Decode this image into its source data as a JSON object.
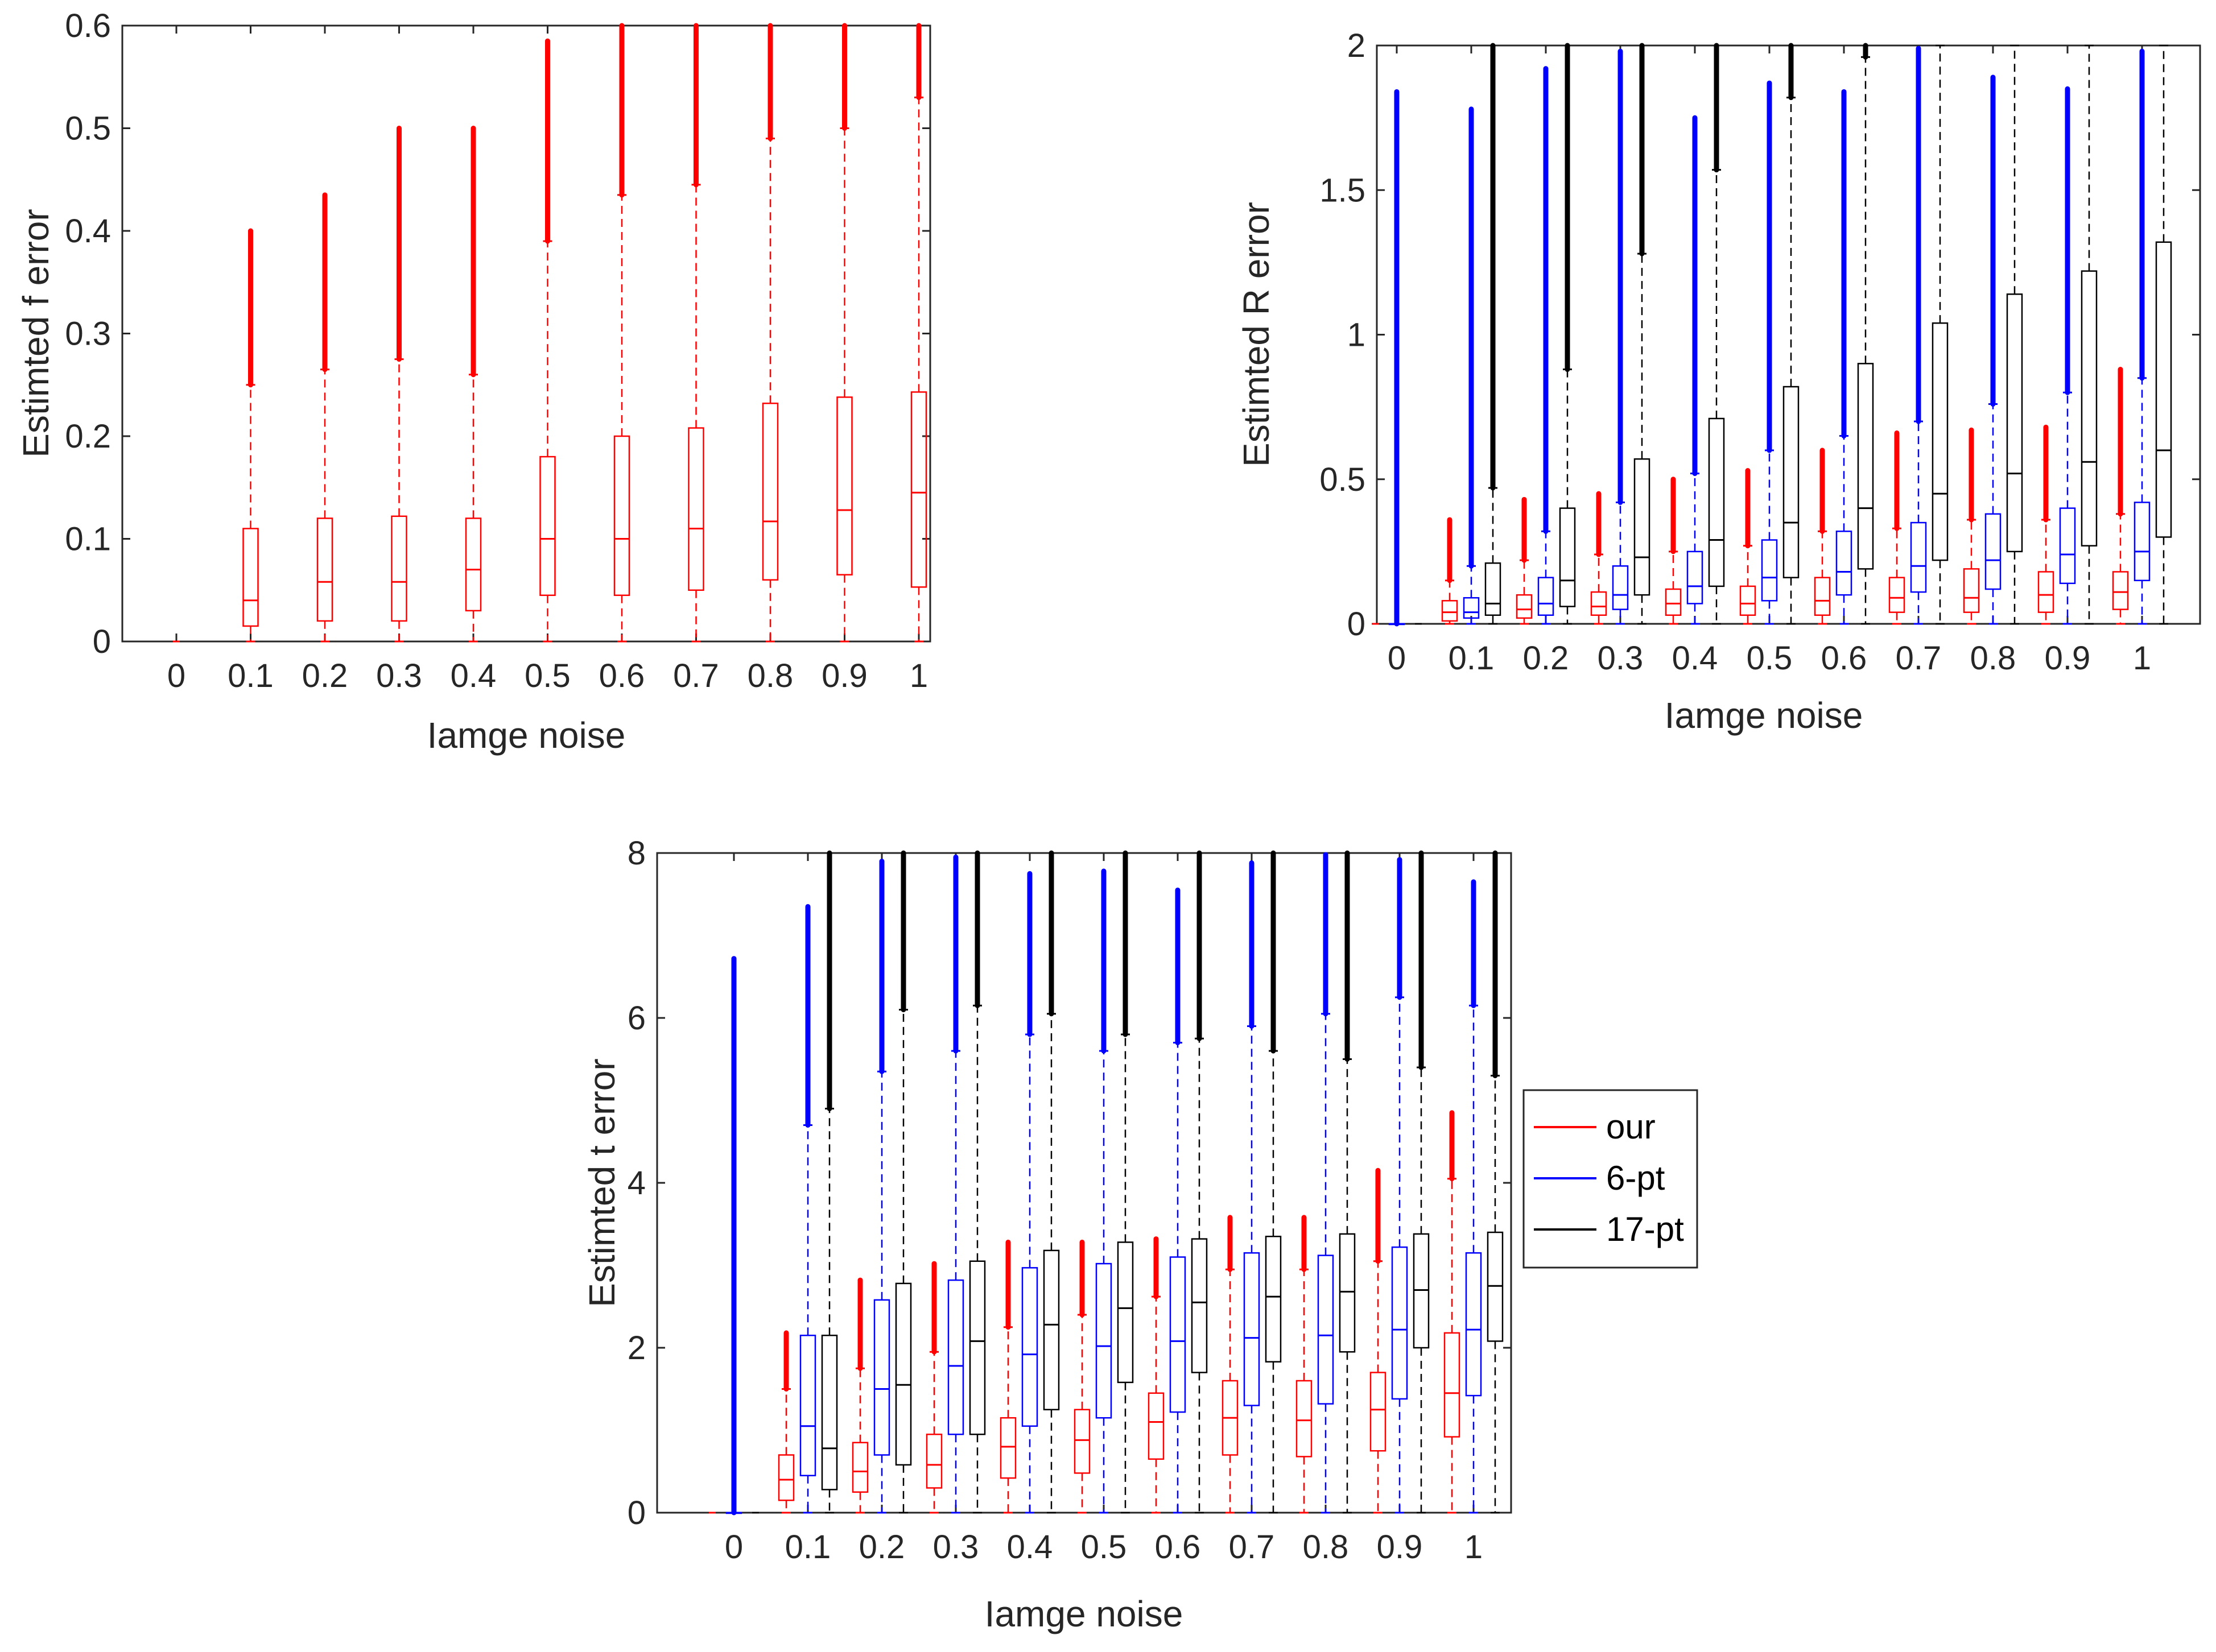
{
  "colors": {
    "our": "#ff0000",
    "6-pt": "#0000ff",
    "17-pt": "#000000",
    "axis": "#262626"
  },
  "legend": {
    "placement": "right of bottom chart",
    "items": [
      {
        "key": "our",
        "label": "our"
      },
      {
        "key": "6-pt",
        "label": "6-pt"
      },
      {
        "key": "17-pt",
        "label": "17-pt"
      }
    ]
  },
  "chart_data": [
    {
      "id": "f",
      "type": "box",
      "xlabel": "Iamge noise",
      "ylabel": "Estimted f error",
      "ylim": [
        0,
        0.6
      ],
      "yticks": [
        "0",
        "0.1",
        "0.2",
        "0.3",
        "0.4",
        "0.5",
        "0.6"
      ],
      "categories": [
        "0",
        "0.1",
        "0.2",
        "0.3",
        "0.4",
        "0.5",
        "0.6",
        "0.7",
        "0.8",
        "0.9",
        "1"
      ],
      "series": [
        {
          "key": "our",
          "boxes": [
            {
              "q1": 0,
              "med": 0,
              "q3": 0,
              "wlo": 0,
              "whi": 0,
              "omin": 0,
              "omax": 0
            },
            {
              "q1": 0.015,
              "med": 0.04,
              "q3": 0.11,
              "wlo": 0,
              "whi": 0.25,
              "omin": 0.25,
              "omax": 0.4
            },
            {
              "q1": 0.02,
              "med": 0.058,
              "q3": 0.12,
              "wlo": 0,
              "whi": 0.265,
              "omin": 0.265,
              "omax": 0.435
            },
            {
              "q1": 0.02,
              "med": 0.058,
              "q3": 0.122,
              "wlo": 0,
              "whi": 0.275,
              "omin": 0.275,
              "omax": 0.5
            },
            {
              "q1": 0.03,
              "med": 0.07,
              "q3": 0.12,
              "wlo": 0,
              "whi": 0.26,
              "omin": 0.26,
              "omax": 0.5
            },
            {
              "q1": 0.045,
              "med": 0.1,
              "q3": 0.18,
              "wlo": 0,
              "whi": 0.39,
              "omin": 0.39,
              "omax": 0.585
            },
            {
              "q1": 0.045,
              "med": 0.1,
              "q3": 0.2,
              "wlo": 0,
              "whi": 0.435,
              "omin": 0.435,
              "omax": 0.6
            },
            {
              "q1": 0.05,
              "med": 0.11,
              "q3": 0.208,
              "wlo": 0,
              "whi": 0.445,
              "omin": 0.445,
              "omax": 0.6
            },
            {
              "q1": 0.06,
              "med": 0.117,
              "q3": 0.232,
              "wlo": 0,
              "whi": 0.49,
              "omin": 0.49,
              "omax": 0.6
            },
            {
              "q1": 0.065,
              "med": 0.128,
              "q3": 0.238,
              "wlo": 0,
              "whi": 0.5,
              "omin": 0.5,
              "omax": 0.6
            },
            {
              "q1": 0.053,
              "med": 0.145,
              "q3": 0.243,
              "wlo": 0,
              "whi": 0.53,
              "omin": 0.53,
              "omax": 0.6
            }
          ]
        }
      ]
    },
    {
      "id": "R",
      "type": "box",
      "xlabel": "Iamge noise",
      "ylabel": "Estimted R error",
      "ylim": [
        0,
        2
      ],
      "yticks": [
        "0",
        "0.5",
        "1",
        "1.5",
        "2"
      ],
      "categories": [
        "0",
        "0.1",
        "0.2",
        "0.3",
        "0.4",
        "0.5",
        "0.6",
        "0.7",
        "0.8",
        "0.9",
        "1"
      ],
      "series": [
        {
          "key": "our",
          "boxes": [
            {
              "q1": 0,
              "med": 0,
              "q3": 0,
              "wlo": 0,
              "whi": 0,
              "omin": 0,
              "omax": 0
            },
            {
              "q1": 0.01,
              "med": 0.04,
              "q3": 0.08,
              "wlo": 0,
              "whi": 0.15,
              "omin": 0.15,
              "omax": 0.36
            },
            {
              "q1": 0.02,
              "med": 0.05,
              "q3": 0.1,
              "wlo": 0,
              "whi": 0.22,
              "omin": 0.22,
              "omax": 0.43
            },
            {
              "q1": 0.03,
              "med": 0.06,
              "q3": 0.11,
              "wlo": 0,
              "whi": 0.24,
              "omin": 0.24,
              "omax": 0.45
            },
            {
              "q1": 0.03,
              "med": 0.07,
              "q3": 0.12,
              "wlo": 0,
              "whi": 0.25,
              "omin": 0.25,
              "omax": 0.5
            },
            {
              "q1": 0.03,
              "med": 0.07,
              "q3": 0.13,
              "wlo": 0,
              "whi": 0.27,
              "omin": 0.27,
              "omax": 0.53
            },
            {
              "q1": 0.03,
              "med": 0.08,
              "q3": 0.16,
              "wlo": 0,
              "whi": 0.32,
              "omin": 0.32,
              "omax": 0.6
            },
            {
              "q1": 0.04,
              "med": 0.09,
              "q3": 0.16,
              "wlo": 0,
              "whi": 0.33,
              "omin": 0.33,
              "omax": 0.66
            },
            {
              "q1": 0.04,
              "med": 0.09,
              "q3": 0.19,
              "wlo": 0,
              "whi": 0.36,
              "omin": 0.36,
              "omax": 0.67
            },
            {
              "q1": 0.04,
              "med": 0.1,
              "q3": 0.18,
              "wlo": 0,
              "whi": 0.36,
              "omin": 0.36,
              "omax": 0.68
            },
            {
              "q1": 0.05,
              "med": 0.11,
              "q3": 0.18,
              "wlo": 0,
              "whi": 0.38,
              "omin": 0.38,
              "omax": 0.88
            }
          ]
        },
        {
          "key": "6-pt",
          "boxes": [
            {
              "q1": 0,
              "med": 0,
              "q3": 0,
              "wlo": 0,
              "whi": 0,
              "omin": 0,
              "omax": 1.84
            },
            {
              "q1": 0.02,
              "med": 0.04,
              "q3": 0.09,
              "wlo": 0,
              "whi": 0.2,
              "omin": 0.2,
              "omax": 1.78
            },
            {
              "q1": 0.03,
              "med": 0.07,
              "q3": 0.16,
              "wlo": 0,
              "whi": 0.32,
              "omin": 0.32,
              "omax": 1.92
            },
            {
              "q1": 0.05,
              "med": 0.1,
              "q3": 0.2,
              "wlo": 0,
              "whi": 0.42,
              "omin": 0.42,
              "omax": 1.98
            },
            {
              "q1": 0.07,
              "med": 0.13,
              "q3": 0.25,
              "wlo": 0,
              "whi": 0.52,
              "omin": 0.52,
              "omax": 1.75
            },
            {
              "q1": 0.08,
              "med": 0.16,
              "q3": 0.29,
              "wlo": 0,
              "whi": 0.6,
              "omin": 0.6,
              "omax": 1.87
            },
            {
              "q1": 0.1,
              "med": 0.18,
              "q3": 0.32,
              "wlo": 0,
              "whi": 0.65,
              "omin": 0.65,
              "omax": 1.84
            },
            {
              "q1": 0.11,
              "med": 0.2,
              "q3": 0.35,
              "wlo": 0,
              "whi": 0.7,
              "omin": 0.7,
              "omax": 1.99
            },
            {
              "q1": 0.12,
              "med": 0.22,
              "q3": 0.38,
              "wlo": 0,
              "whi": 0.76,
              "omin": 0.76,
              "omax": 1.89
            },
            {
              "q1": 0.14,
              "med": 0.24,
              "q3": 0.4,
              "wlo": 0,
              "whi": 0.8,
              "omin": 0.8,
              "omax": 1.85
            },
            {
              "q1": 0.15,
              "med": 0.25,
              "q3": 0.42,
              "wlo": 0,
              "whi": 0.85,
              "omin": 0.85,
              "omax": 1.98
            }
          ]
        },
        {
          "key": "17-pt",
          "boxes": [
            {
              "q1": 0,
              "med": 0,
              "q3": 0,
              "wlo": 0,
              "whi": 0,
              "omin": 0,
              "omax": 0
            },
            {
              "q1": 0.03,
              "med": 0.07,
              "q3": 0.21,
              "wlo": 0,
              "whi": 0.47,
              "omin": 0.47,
              "omax": 2.0
            },
            {
              "q1": 0.06,
              "med": 0.15,
              "q3": 0.4,
              "wlo": 0,
              "whi": 0.88,
              "omin": 0.88,
              "omax": 2.0
            },
            {
              "q1": 0.1,
              "med": 0.23,
              "q3": 0.57,
              "wlo": 0,
              "whi": 1.28,
              "omin": 1.28,
              "omax": 2.0
            },
            {
              "q1": 0.13,
              "med": 0.29,
              "q3": 0.71,
              "wlo": 0,
              "whi": 1.57,
              "omin": 1.57,
              "omax": 2.0
            },
            {
              "q1": 0.16,
              "med": 0.35,
              "q3": 0.82,
              "wlo": 0,
              "whi": 1.82,
              "omin": 1.82,
              "omax": 2.0
            },
            {
              "q1": 0.19,
              "med": 0.4,
              "q3": 0.9,
              "wlo": 0,
              "whi": 1.96,
              "omin": 1.96,
              "omax": 2.0
            },
            {
              "q1": 0.22,
              "med": 0.45,
              "q3": 1.04,
              "wlo": 0,
              "whi": 2.0,
              "omin": 2.0,
              "omax": 2.0
            },
            {
              "q1": 0.25,
              "med": 0.52,
              "q3": 1.14,
              "wlo": 0,
              "whi": 2.0,
              "omin": 2.0,
              "omax": 2.0
            },
            {
              "q1": 0.27,
              "med": 0.56,
              "q3": 1.22,
              "wlo": 0,
              "whi": 2.0,
              "omin": 2.0,
              "omax": 2.0
            },
            {
              "q1": 0.3,
              "med": 0.6,
              "q3": 1.32,
              "wlo": 0,
              "whi": 2.0,
              "omin": 2.0,
              "omax": 2.0
            }
          ]
        }
      ]
    },
    {
      "id": "t",
      "type": "box",
      "xlabel": "Iamge noise",
      "ylabel": "Estimted t error",
      "ylim": [
        0,
        8
      ],
      "yticks": [
        "0",
        "2",
        "4",
        "6",
        "8"
      ],
      "categories": [
        "0",
        "0.1",
        "0.2",
        "0.3",
        "0.4",
        "0.5",
        "0.6",
        "0.7",
        "0.8",
        "0.9",
        "1"
      ],
      "series": [
        {
          "key": "our",
          "boxes": [
            {
              "q1": 0,
              "med": 0,
              "q3": 0,
              "wlo": 0,
              "whi": 0,
              "omin": 0,
              "omax": 0
            },
            {
              "q1": 0.15,
              "med": 0.4,
              "q3": 0.7,
              "wlo": 0,
              "whi": 1.5,
              "omin": 1.5,
              "omax": 2.18
            },
            {
              "q1": 0.25,
              "med": 0.5,
              "q3": 0.85,
              "wlo": 0,
              "whi": 1.75,
              "omin": 1.75,
              "omax": 2.82
            },
            {
              "q1": 0.3,
              "med": 0.58,
              "q3": 0.95,
              "wlo": 0,
              "whi": 1.95,
              "omin": 1.95,
              "omax": 3.02
            },
            {
              "q1": 0.42,
              "med": 0.8,
              "q3": 1.15,
              "wlo": 0,
              "whi": 2.25,
              "omin": 2.25,
              "omax": 3.28
            },
            {
              "q1": 0.48,
              "med": 0.88,
              "q3": 1.25,
              "wlo": 0,
              "whi": 2.4,
              "omin": 2.4,
              "omax": 3.28
            },
            {
              "q1": 0.65,
              "med": 1.1,
              "q3": 1.45,
              "wlo": 0,
              "whi": 2.62,
              "omin": 2.62,
              "omax": 3.32
            },
            {
              "q1": 0.7,
              "med": 1.15,
              "q3": 1.6,
              "wlo": 0,
              "whi": 2.95,
              "omin": 2.95,
              "omax": 3.58
            },
            {
              "q1": 0.68,
              "med": 1.12,
              "q3": 1.6,
              "wlo": 0,
              "whi": 2.95,
              "omin": 2.95,
              "omax": 3.58
            },
            {
              "q1": 0.75,
              "med": 1.25,
              "q3": 1.7,
              "wlo": 0,
              "whi": 3.05,
              "omin": 3.05,
              "omax": 4.15
            },
            {
              "q1": 0.92,
              "med": 1.45,
              "q3": 2.18,
              "wlo": 0,
              "whi": 4.05,
              "omin": 4.05,
              "omax": 4.85
            }
          ]
        },
        {
          "key": "6-pt",
          "boxes": [
            {
              "q1": 0,
              "med": 0,
              "q3": 0,
              "wlo": 0,
              "whi": 0,
              "omin": 0,
              "omax": 6.72
            },
            {
              "q1": 0.45,
              "med": 1.05,
              "q3": 2.15,
              "wlo": 0,
              "whi": 4.7,
              "omin": 4.7,
              "omax": 7.35
            },
            {
              "q1": 0.7,
              "med": 1.5,
              "q3": 2.58,
              "wlo": 0,
              "whi": 5.35,
              "omin": 5.35,
              "omax": 7.9
            },
            {
              "q1": 0.95,
              "med": 1.78,
              "q3": 2.82,
              "wlo": 0,
              "whi": 5.6,
              "omin": 5.6,
              "omax": 7.95
            },
            {
              "q1": 1.05,
              "med": 1.92,
              "q3": 2.97,
              "wlo": 0,
              "whi": 5.8,
              "omin": 5.8,
              "omax": 7.75
            },
            {
              "q1": 1.15,
              "med": 2.02,
              "q3": 3.02,
              "wlo": 0,
              "whi": 5.6,
              "omin": 5.6,
              "omax": 7.78
            },
            {
              "q1": 1.22,
              "med": 2.08,
              "q3": 3.1,
              "wlo": 0,
              "whi": 5.7,
              "omin": 5.7,
              "omax": 7.55
            },
            {
              "q1": 1.3,
              "med": 2.12,
              "q3": 3.15,
              "wlo": 0,
              "whi": 5.9,
              "omin": 5.9,
              "omax": 7.88
            },
            {
              "q1": 1.32,
              "med": 2.15,
              "q3": 3.12,
              "wlo": 0,
              "whi": 6.05,
              "omin": 6.05,
              "omax": 7.98
            },
            {
              "q1": 1.38,
              "med": 2.22,
              "q3": 3.22,
              "wlo": 0,
              "whi": 6.25,
              "omin": 6.25,
              "omax": 7.92
            },
            {
              "q1": 1.42,
              "med": 2.22,
              "q3": 3.15,
              "wlo": 0,
              "whi": 6.15,
              "omin": 6.15,
              "omax": 7.65
            }
          ]
        },
        {
          "key": "17-pt",
          "boxes": [
            {
              "q1": 0,
              "med": 0,
              "q3": 0,
              "wlo": 0,
              "whi": 0,
              "omin": 0,
              "omax": 0
            },
            {
              "q1": 0.28,
              "med": 0.78,
              "q3": 2.15,
              "wlo": 0,
              "whi": 4.9,
              "omin": 4.9,
              "omax": 8.0
            },
            {
              "q1": 0.58,
              "med": 1.55,
              "q3": 2.78,
              "wlo": 0,
              "whi": 6.1,
              "omin": 6.1,
              "omax": 8.0
            },
            {
              "q1": 0.95,
              "med": 2.08,
              "q3": 3.05,
              "wlo": 0,
              "whi": 6.15,
              "omin": 6.15,
              "omax": 8.0
            },
            {
              "q1": 1.25,
              "med": 2.28,
              "q3": 3.18,
              "wlo": 0,
              "whi": 6.05,
              "omin": 6.05,
              "omax": 8.0
            },
            {
              "q1": 1.58,
              "med": 2.48,
              "q3": 3.28,
              "wlo": 0,
              "whi": 5.8,
              "omin": 5.8,
              "omax": 8.0
            },
            {
              "q1": 1.7,
              "med": 2.55,
              "q3": 3.32,
              "wlo": 0,
              "whi": 5.75,
              "omin": 5.75,
              "omax": 8.0
            },
            {
              "q1": 1.83,
              "med": 2.62,
              "q3": 3.35,
              "wlo": 0,
              "whi": 5.6,
              "omin": 5.6,
              "omax": 8.0
            },
            {
              "q1": 1.95,
              "med": 2.68,
              "q3": 3.38,
              "wlo": 0,
              "whi": 5.5,
              "omin": 5.5,
              "omax": 8.0
            },
            {
              "q1": 2.0,
              "med": 2.7,
              "q3": 3.38,
              "wlo": 0,
              "whi": 5.4,
              "omin": 5.4,
              "omax": 8.0
            },
            {
              "q1": 2.08,
              "med": 2.75,
              "q3": 3.4,
              "wlo": 0,
              "whi": 5.3,
              "omin": 5.3,
              "omax": 8.0
            }
          ]
        }
      ]
    }
  ]
}
